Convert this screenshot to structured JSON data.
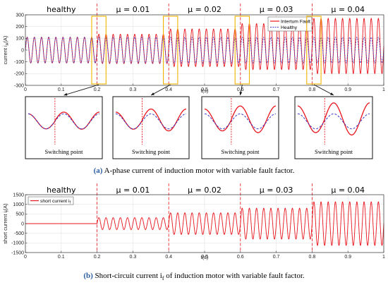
{
  "figure": {
    "caption_a_label": "(a)",
    "caption_a_text": "A-phase current of induction motor with variable fault factor.",
    "caption_b_label": "(b)",
    "caption_b_text": "Short-circuit current i",
    "caption_b_sub": "f",
    "caption_b_rest": " of induction motor with variable fault factor.",
    "switching_label": "Switching point"
  },
  "colors": {
    "fault": "#e8141c",
    "healthy": "#3b37c9",
    "marker": "#e8141c",
    "zoom_box": "#f0b400"
  },
  "chart_data": [
    {
      "type": "line",
      "ylabel": "current i",
      "ylabel_sub": "A",
      "ylabel_unit": "(A)",
      "xlabel": "t(s)",
      "xlim": [
        0,
        1
      ],
      "ylim": [
        -300,
        300
      ],
      "xticks": [
        "0",
        "0.1",
        "0.2",
        "0.3",
        "0.4",
        "0.5",
        "0.6",
        "0.7",
        "0.8",
        "0.9",
        "1"
      ],
      "yticks": [
        "300",
        "200",
        "100",
        "0",
        "-100",
        "-200",
        "-300"
      ],
      "frequency_hz": 50,
      "segments": [
        {
          "label": "healthy",
          "start": 0,
          "end": 0.2
        },
        {
          "label": "μ = 0.01",
          "start": 0.2,
          "end": 0.4
        },
        {
          "label": "μ = 0.02",
          "start": 0.4,
          "end": 0.6
        },
        {
          "label": "μ = 0.03",
          "start": 0.6,
          "end": 0.8
        },
        {
          "label": "μ = 0.04",
          "start": 0.8,
          "end": 1.0
        }
      ],
      "switch_times": [
        0.2,
        0.4,
        0.6,
        0.8
      ],
      "series": [
        {
          "name": "Intertum Fault",
          "amplitude": [
            110,
            125,
            160,
            195,
            235
          ],
          "offset": [
            0,
            10,
            20,
            30,
            35
          ]
        },
        {
          "name": "Healthy",
          "amplitude": [
            110,
            110,
            110,
            110,
            110
          ],
          "offset": [
            0,
            0,
            0,
            0,
            0
          ]
        }
      ],
      "legend": "top-right"
    },
    {
      "type": "line",
      "ylabel": "short current i",
      "ylabel_sub": "f",
      "ylabel_unit": "(A)",
      "xlabel": "t(s)",
      "xlim": [
        0,
        1
      ],
      "ylim": [
        -1500,
        1500
      ],
      "xticks": [
        "0",
        "0.1",
        "0.2",
        "0.3",
        "0.4",
        "0.5",
        "0.6",
        "0.7",
        "0.8",
        "0.9",
        "1"
      ],
      "yticks": [
        "1500",
        "1000",
        "500",
        "0",
        "-500",
        "-1000",
        "-1500"
      ],
      "frequency_hz": 50,
      "segments": [
        {
          "label": "healthy",
          "start": 0,
          "end": 0.2
        },
        {
          "label": "μ = 0.01",
          "start": 0.2,
          "end": 0.4
        },
        {
          "label": "μ = 0.02",
          "start": 0.4,
          "end": 0.6
        },
        {
          "label": "μ = 0.03",
          "start": 0.6,
          "end": 0.8
        },
        {
          "label": "μ = 0.04",
          "start": 0.8,
          "end": 1.0
        }
      ],
      "switch_times": [
        0.2,
        0.4,
        0.6,
        0.8
      ],
      "series": [
        {
          "name": "short current i",
          "name_sub": "f",
          "amplitude": [
            0,
            310,
            560,
            800,
            1130
          ],
          "offset": [
            0,
            0,
            0,
            0,
            0
          ]
        }
      ],
      "legend": "top-left"
    }
  ]
}
